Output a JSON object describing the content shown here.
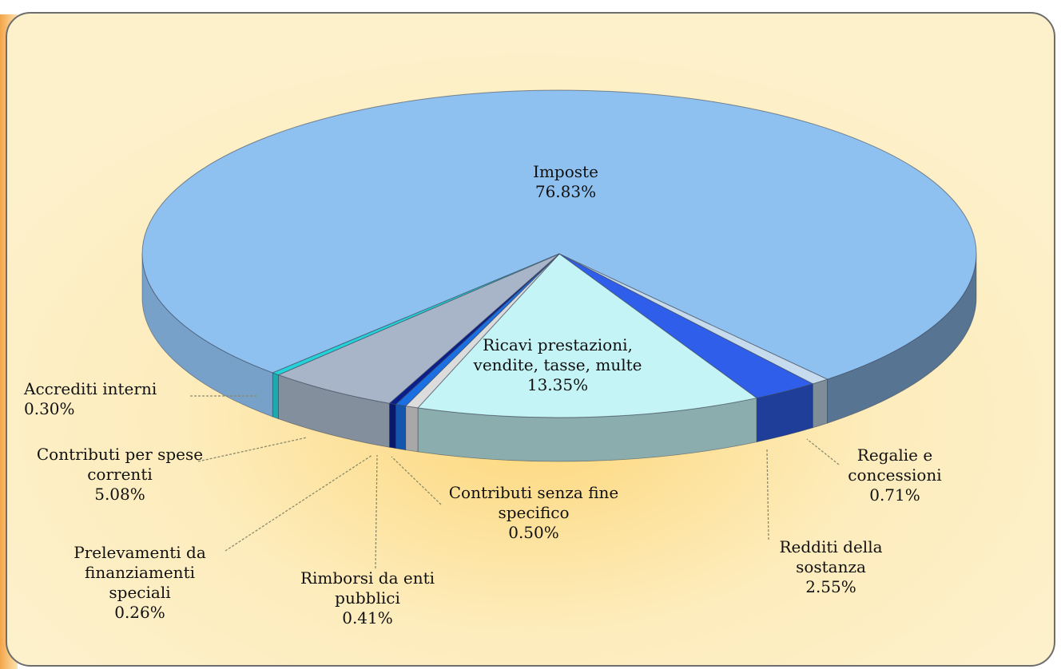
{
  "chart_data": {
    "type": "pie3d",
    "categories": [
      "Imposte",
      "Regalie e concessioni",
      "Redditi della sostanza",
      "Ricavi prestazioni, vendite, tasse, multe",
      "Contributi senza fine specifico",
      "Rimborsi da enti pubblici",
      "Prelevamenti da finanziamenti speciali",
      "Contributi per spese correnti",
      "Accrediti interni"
    ],
    "values": [
      76.83,
      0.71,
      2.55,
      13.35,
      0.5,
      0.41,
      0.26,
      5.08,
      0.3
    ],
    "value_labels": [
      "76.83%",
      "0.71%",
      "2.55%",
      "13.35%",
      "0.50%",
      "0.41%",
      "0.26%",
      "5.08%",
      "0.30%"
    ],
    "colors": [
      "#8fc1f0",
      "#c6dbed",
      "#2f5fea",
      "#c4f4f5",
      "#dcdcdc",
      "#1a70e2",
      "#0b1f8c",
      "#a8b5c8",
      "#25d2da"
    ]
  }
}
